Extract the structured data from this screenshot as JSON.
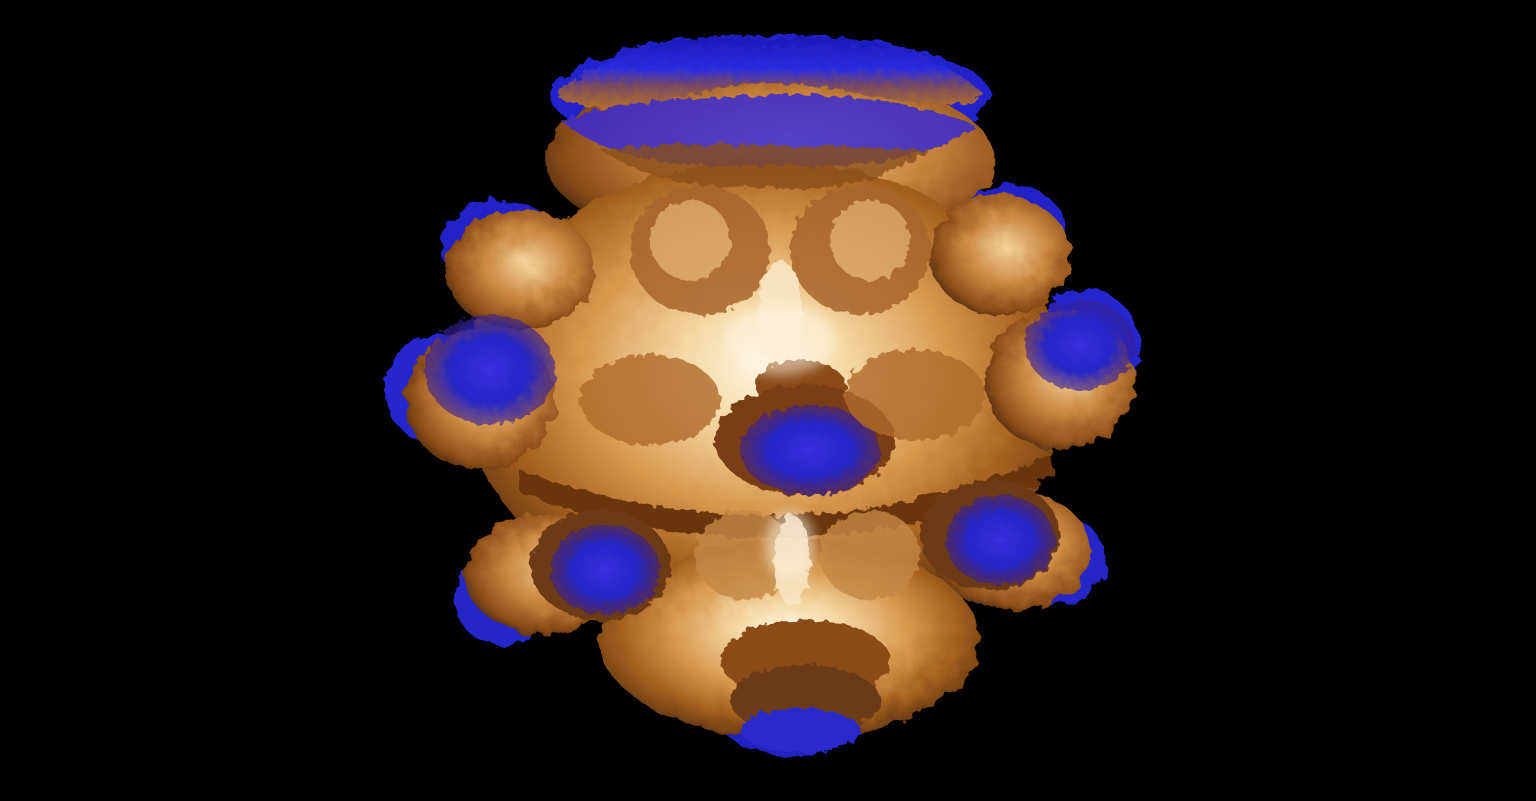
{
  "viewport": {
    "background": "#000000",
    "content": "mandelbulb-3d-fractal-render"
  },
  "fractal": {
    "palette": {
      "highlight": "#fff1d6",
      "light": "#f2cf95",
      "mid": "#d79a4f",
      "dark": "#9a5a1e",
      "shadow": "#5e3210",
      "edge": "#2626d8",
      "edge_dark": "#1414a0"
    }
  }
}
